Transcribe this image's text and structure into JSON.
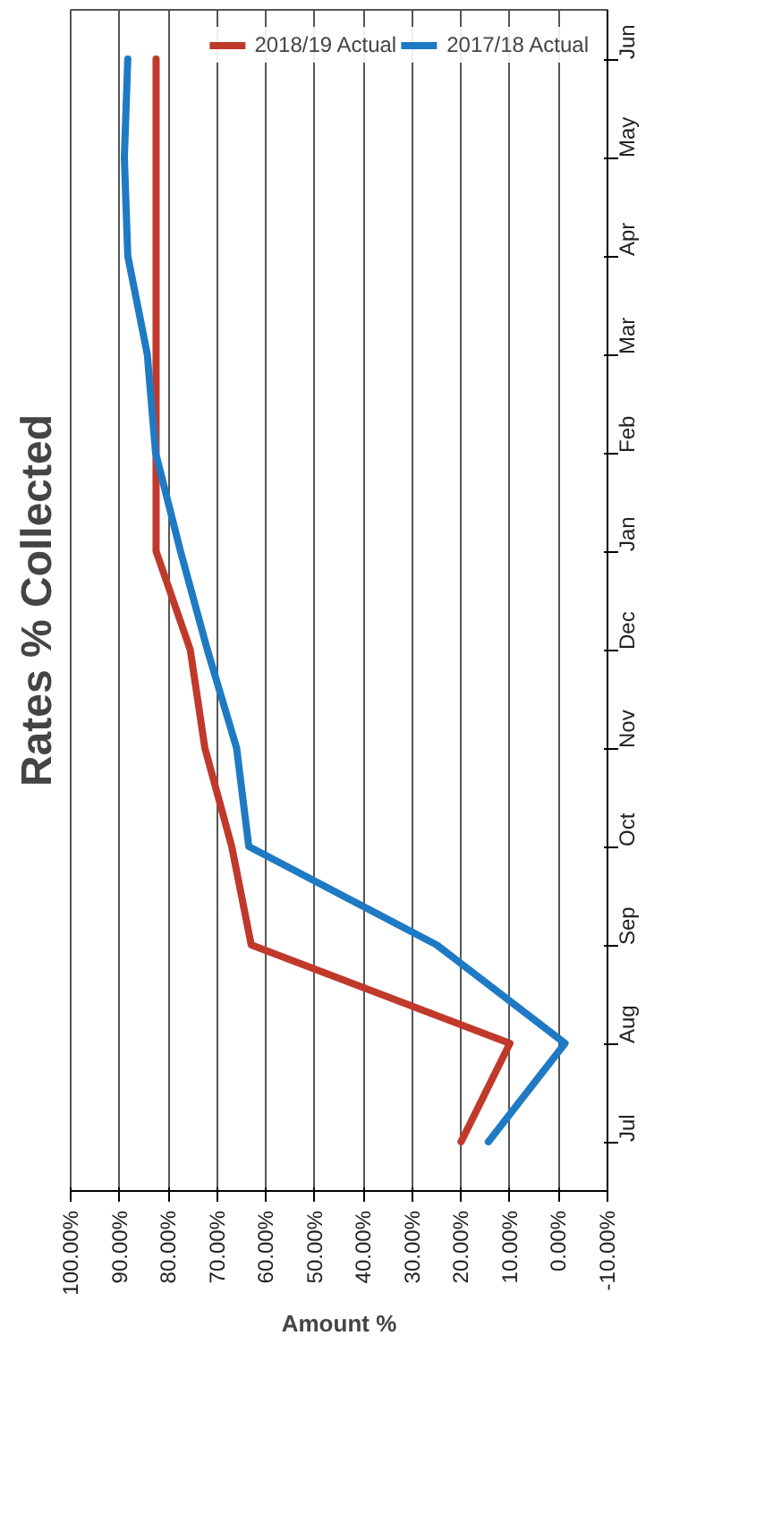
{
  "chart_data": {
    "type": "line",
    "title": "Rates % Collected",
    "xlabel": "Amount %",
    "orientation": "horizontal",
    "categories": [
      "Jun",
      "May",
      "Apr",
      "Mar",
      "Feb",
      "Jan",
      "Dec",
      "Nov",
      "Oct",
      "Sep",
      "Aug",
      "Jul"
    ],
    "series": [
      {
        "name": "2018/19 Actual",
        "color": "#c0392b",
        "values": [
          82.5,
          82.5,
          82.5,
          82.5,
          82.5,
          82.5,
          75.5,
          72.5,
          67,
          63,
          10,
          20
        ]
      },
      {
        "name": "2017/18 Actual",
        "color": "#1f7ac4",
        "values": [
          88.3,
          89,
          88.3,
          84.3,
          82.6,
          77.5,
          72,
          66,
          63.5,
          25,
          -1.3,
          14.4
        ]
      }
    ],
    "xlim": [
      100,
      -10
    ],
    "xticks": [
      {
        "value": 100,
        "label": "100.00%"
      },
      {
        "value": 90,
        "label": "90.00%"
      },
      {
        "value": 80,
        "label": "80.00%"
      },
      {
        "value": 70,
        "label": "70.00%"
      },
      {
        "value": 60,
        "label": "60.00%"
      },
      {
        "value": 50,
        "label": "50.00%"
      },
      {
        "value": 40,
        "label": "40.00%"
      },
      {
        "value": 30,
        "label": "30.00%"
      },
      {
        "value": 20,
        "label": "20.00%"
      },
      {
        "value": 10,
        "label": "10.00%"
      },
      {
        "value": 0,
        "label": "0.00%"
      },
      {
        "value": -10,
        "label": "-10.00%"
      }
    ],
    "grid": "x",
    "legend": "top right",
    "marker": "none",
    "line_style": "solid"
  }
}
